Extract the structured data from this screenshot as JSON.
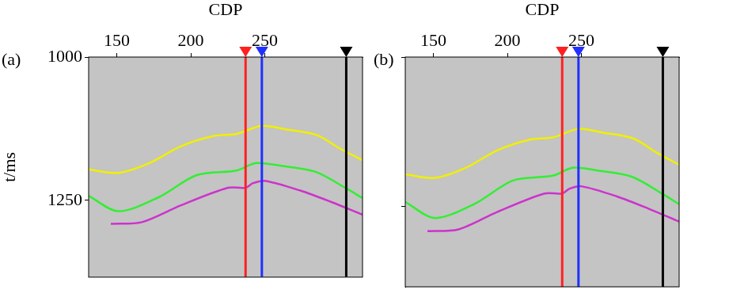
{
  "chart_data": [
    {
      "type": "line",
      "panel_label": "(a)",
      "x_label": "CDP",
      "y_label": "t/ms",
      "xlim": [
        131,
        316
      ],
      "xticks": [
        150,
        200,
        250
      ],
      "ylim": [
        1000,
        1384
      ],
      "yticks": [
        1000,
        1250
      ],
      "grid": false,
      "series": [
        {
          "color": "#f0f000",
          "x": [
            131,
            151,
            172,
            193,
            215,
            231,
            248,
            264,
            285,
            301,
            316
          ],
          "values": [
            1196,
            1202,
            1185,
            1156,
            1138,
            1134,
            1120,
            1126,
            1136,
            1160,
            1180
          ]
        },
        {
          "color": "#33ee33",
          "x": [
            131,
            151,
            178,
            204,
            231,
            244,
            262,
            284,
            305,
            316
          ],
          "values": [
            1242,
            1269,
            1245,
            1206,
            1198,
            1185,
            1190,
            1200,
            1229,
            1246
          ]
        },
        {
          "color": "#cc33cc",
          "x": [
            146,
            167,
            193,
            225,
            237,
            242,
            250,
            274,
            295,
            316
          ],
          "values": [
            1291,
            1288,
            1259,
            1228,
            1228,
            1220,
            1216,
            1233,
            1253,
            1275
          ]
        }
      ],
      "wells": [
        {
          "x": 237,
          "color": "#ff2020",
          "marker": "triangle"
        },
        {
          "x": 248,
          "color": "#2030ff",
          "marker": "triangle"
        },
        {
          "x": 305,
          "color": "#000000",
          "marker": "triangle"
        }
      ]
    },
    {
      "type": "line",
      "panel_label": "(b)",
      "x_label": "CDP",
      "xlim": [
        131,
        316
      ],
      "xticks": [
        150,
        200,
        250
      ],
      "ylim": [
        1000,
        1384
      ],
      "yticks": [
        1000,
        1250
      ],
      "grid": false,
      "tick_labels": "x",
      "series": [
        {
          "color": "#f0f000",
          "x": [
            131,
            151,
            172,
            193,
            215,
            231,
            248,
            264,
            285,
            301,
            316
          ],
          "values": [
            1196,
            1202,
            1185,
            1156,
            1138,
            1134,
            1120,
            1126,
            1136,
            1160,
            1180
          ]
        },
        {
          "color": "#33ee33",
          "x": [
            131,
            151,
            178,
            204,
            231,
            244,
            262,
            284,
            305,
            316
          ],
          "values": [
            1242,
            1269,
            1245,
            1206,
            1198,
            1185,
            1190,
            1200,
            1229,
            1246
          ]
        },
        {
          "color": "#cc33cc",
          "x": [
            146,
            167,
            193,
            225,
            237,
            242,
            250,
            274,
            295,
            316
          ],
          "values": [
            1291,
            1288,
            1259,
            1228,
            1228,
            1220,
            1216,
            1233,
            1253,
            1275
          ]
        }
      ],
      "wells": [
        {
          "x": 237,
          "color": "#ff2020",
          "marker": "triangle"
        },
        {
          "x": 248,
          "color": "#2030ff",
          "marker": "triangle"
        },
        {
          "x": 305,
          "color": "#000000",
          "marker": "triangle"
        }
      ]
    }
  ]
}
